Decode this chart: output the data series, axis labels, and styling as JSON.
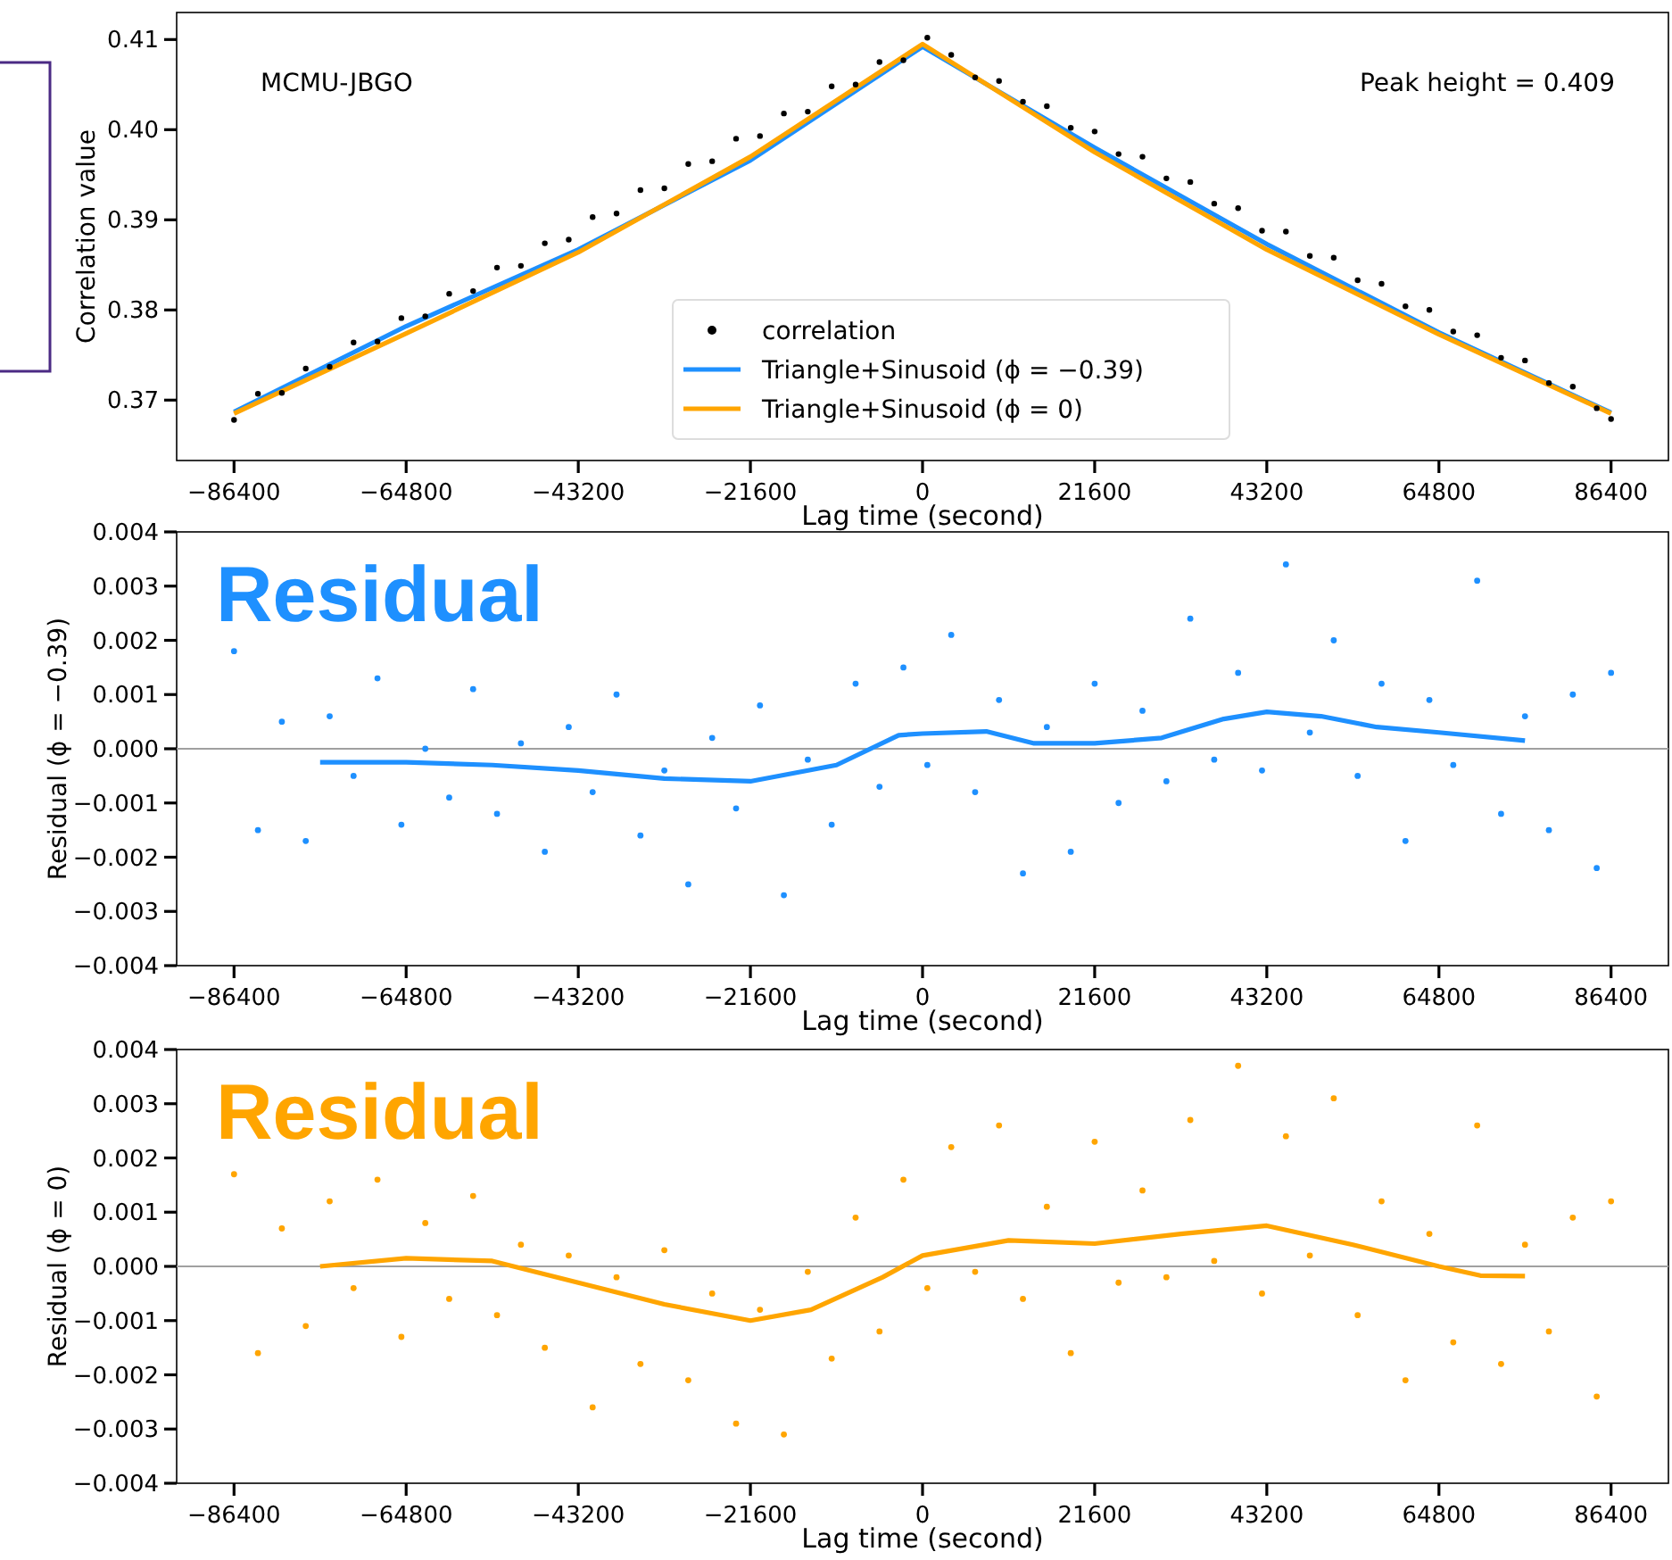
{
  "chart_data": [
    {
      "type": "scatter",
      "annotations": [
        "MCMU-JBGO",
        "Peak height = 0.409"
      ],
      "xlabel": "Lag time (second)",
      "ylabel": "Correlation value",
      "legend": "bottom",
      "xlim": [
        -93600,
        93600
      ],
      "ylim": [
        0.3633,
        0.413
      ],
      "xticks": [
        {
          "value": -86400,
          "label": "−86400"
        },
        {
          "value": -64800,
          "label": "−64800"
        },
        {
          "value": -43200,
          "label": "−43200"
        },
        {
          "value": -21600,
          "label": "−21600"
        },
        0,
        21600,
        43200,
        64800,
        86400
      ],
      "yticks": [
        0.37,
        0.38,
        0.39,
        {
          "value": 0.4,
          "label": "0.40"
        },
        0.41
      ],
      "series": [
        {
          "name": "correlation",
          "type": "scatter",
          "color": "#000000",
          "x": [
            -86400,
            -83400,
            -80400,
            -77400,
            -74400,
            -71400,
            -68400,
            -65400,
            -62400,
            -59400,
            -56400,
            -53400,
            -50400,
            -47400,
            -44400,
            -41400,
            -38400,
            -35400,
            -32400,
            -29400,
            -26400,
            -23400,
            -20400,
            -17400,
            -14400,
            -11400,
            -8400,
            -5400,
            -2400,
            600,
            3600,
            6600,
            9600,
            12600,
            15600,
            18600,
            21600,
            24600,
            27600,
            30600,
            33600,
            36600,
            39600,
            42600,
            45600,
            48600,
            51600,
            54600,
            57600,
            60600,
            63600,
            66600,
            69600,
            72600,
            75600,
            78600,
            81600,
            84600,
            86400
          ],
          "values": [
            0.3678,
            0.3707,
            0.3708,
            0.3735,
            0.3737,
            0.3764,
            0.3765,
            0.3791,
            0.3793,
            0.3818,
            0.3821,
            0.3847,
            0.3849,
            0.3874,
            0.3878,
            0.3903,
            0.3907,
            0.3933,
            0.3935,
            0.3962,
            0.3965,
            0.399,
            0.3993,
            0.4018,
            0.402,
            0.4048,
            0.405,
            0.4075,
            0.4077,
            0.4102,
            0.4083,
            0.4058,
            0.4054,
            0.4031,
            0.4026,
            0.4002,
            0.3998,
            0.3973,
            0.397,
            0.3946,
            0.3942,
            0.3918,
            0.3913,
            0.3888,
            0.3887,
            0.386,
            0.3858,
            0.3833,
            0.3829,
            0.3804,
            0.38,
            0.3776,
            0.3772,
            0.3747,
            0.3744,
            0.3719,
            0.3715,
            0.3691,
            0.3679
          ]
        },
        {
          "name": "Triangle+Sinusoid (ϕ = −0.39)",
          "type": "line",
          "color": "#1e90ff",
          "x": [
            -86400,
            -64800,
            -43200,
            -21600,
            0,
            21600,
            43200,
            64800,
            86400
          ],
          "values": [
            0.3687,
            0.3782,
            0.3867,
            0.3966,
            0.4092,
            0.398,
            0.3873,
            0.3775,
            0.3686
          ]
        },
        {
          "name": "Triangle+Sinusoid (ϕ = 0)",
          "type": "line",
          "color": "#ffa500",
          "x": [
            -86400,
            -64800,
            -43200,
            -21600,
            0,
            21600,
            43200,
            64800,
            86400
          ],
          "values": [
            0.3685,
            0.3774,
            0.3864,
            0.397,
            0.4095,
            0.3975,
            0.3867,
            0.3773,
            0.3685
          ]
        }
      ]
    },
    {
      "type": "scatter",
      "annotations": [
        "Residual"
      ],
      "xlabel": "Lag time (second)",
      "ylabel": "Residual (ϕ = −0.39)",
      "legend": false,
      "xlim": [
        -93600,
        93600
      ],
      "ylim": [
        -0.004,
        0.004
      ],
      "xticks": [
        {
          "value": -86400,
          "label": "−86400"
        },
        {
          "value": -64800,
          "label": "−64800"
        },
        {
          "value": -43200,
          "label": "−43200"
        },
        {
          "value": -21600,
          "label": "−21600"
        },
        0,
        21600,
        43200,
        64800,
        86400
      ],
      "yticks": [
        {
          "value": -0.004,
          "label": "−0.004"
        },
        {
          "value": -0.003,
          "label": "−0.003"
        },
        {
          "value": -0.002,
          "label": "−0.002"
        },
        {
          "value": -0.001,
          "label": "−0.001"
        },
        {
          "value": 0,
          "label": "0.000"
        },
        0.001,
        0.002,
        0.003,
        0.004
      ],
      "ref_lines": [
        {
          "axis": "y",
          "value": 0,
          "color": "#a0a0a0"
        }
      ],
      "series": [
        {
          "type": "scatter",
          "color": "#1e90ff",
          "x": [
            -86400,
            -83400,
            -80400,
            -77400,
            -74400,
            -71400,
            -68400,
            -65400,
            -62400,
            -59400,
            -56400,
            -53400,
            -50400,
            -47400,
            -44400,
            -41400,
            -38400,
            -35400,
            -32400,
            -29400,
            -26400,
            -23400,
            -20400,
            -17400,
            -14400,
            -11400,
            -8400,
            -5400,
            -2400,
            600,
            3600,
            6600,
            9600,
            12600,
            15600,
            18600,
            21600,
            24600,
            27600,
            30600,
            33600,
            36600,
            39600,
            42600,
            45600,
            48600,
            51600,
            54600,
            57600,
            60600,
            63600,
            66600,
            69600,
            72600,
            75600,
            78600,
            81600,
            84600,
            86400
          ],
          "values": [
            0.0018,
            -0.0015,
            0.0005,
            -0.0017,
            0.0006,
            -0.0005,
            0.0013,
            -0.0014,
            0.0,
            -0.0009,
            0.0011,
            -0.0012,
            0.0001,
            -0.0019,
            0.0004,
            -0.0008,
            0.001,
            -0.0016,
            -0.0004,
            -0.0025,
            0.0002,
            -0.0011,
            0.0008,
            -0.0027,
            -0.0002,
            -0.0014,
            0.0012,
            -0.0007,
            0.0015,
            -0.0003,
            0.0021,
            -0.0008,
            0.0009,
            -0.0023,
            0.0004,
            -0.0019,
            0.0012,
            -0.001,
            0.0007,
            -0.0006,
            0.0024,
            -0.0002,
            0.0014,
            -0.0004,
            0.0034,
            0.0003,
            0.002,
            -0.0005,
            0.0012,
            -0.0017,
            0.0009,
            -0.0003,
            0.0031,
            -0.0012,
            0.0006,
            -0.0015,
            0.001,
            -0.0022,
            0.0014
          ]
        },
        {
          "type": "line",
          "color": "#1e90ff",
          "x": [
            -75600,
            -64800,
            -54000,
            -43200,
            -32400,
            -21600,
            -10800,
            -3000,
            0,
            8000,
            14000,
            21600,
            30000,
            37800,
            43200,
            50000,
            57000,
            64800,
            75600
          ],
          "values": [
            -0.00025,
            -0.00025,
            -0.0003,
            -0.0004,
            -0.00055,
            -0.0006,
            -0.0003,
            0.00025,
            0.00028,
            0.00032,
            0.0001,
            0.0001,
            0.0002,
            0.00055,
            0.00068,
            0.0006,
            0.0004,
            0.0003,
            0.00015
          ]
        }
      ]
    },
    {
      "type": "scatter",
      "annotations": [
        "Residual"
      ],
      "xlabel": "Lag time (second)",
      "ylabel": "Residual (ϕ = 0)",
      "legend": false,
      "xlim": [
        -93600,
        93600
      ],
      "ylim": [
        -0.004,
        0.004
      ],
      "xticks": [
        {
          "value": -86400,
          "label": "−86400"
        },
        {
          "value": -64800,
          "label": "−64800"
        },
        {
          "value": -43200,
          "label": "−43200"
        },
        {
          "value": -21600,
          "label": "−21600"
        },
        0,
        21600,
        43200,
        64800,
        86400
      ],
      "yticks": [
        {
          "value": -0.004,
          "label": "−0.004"
        },
        {
          "value": -0.003,
          "label": "−0.003"
        },
        {
          "value": -0.002,
          "label": "−0.002"
        },
        {
          "value": -0.001,
          "label": "−0.001"
        },
        {
          "value": 0,
          "label": "0.000"
        },
        0.001,
        0.002,
        0.003,
        0.004
      ],
      "ref_lines": [
        {
          "axis": "y",
          "value": 0,
          "color": "#a0a0a0"
        }
      ],
      "series": [
        {
          "type": "scatter",
          "color": "#ffa500",
          "x": [
            -86400,
            -83400,
            -80400,
            -77400,
            -74400,
            -71400,
            -68400,
            -65400,
            -62400,
            -59400,
            -56400,
            -53400,
            -50400,
            -47400,
            -44400,
            -41400,
            -38400,
            -35400,
            -32400,
            -29400,
            -26400,
            -23400,
            -20400,
            -17400,
            -14400,
            -11400,
            -8400,
            -5400,
            -2400,
            600,
            3600,
            6600,
            9600,
            12600,
            15600,
            18600,
            21600,
            24600,
            27600,
            30600,
            33600,
            36600,
            39600,
            42600,
            45600,
            48600,
            51600,
            54600,
            57600,
            60600,
            63600,
            66600,
            69600,
            72600,
            75600,
            78600,
            81600,
            84600,
            86400
          ],
          "values": [
            0.0017,
            -0.0016,
            0.0007,
            -0.0011,
            0.0012,
            -0.0004,
            0.0016,
            -0.0013,
            0.0008,
            -0.0006,
            0.0013,
            -0.0009,
            0.0004,
            -0.0015,
            0.0002,
            -0.0026,
            -0.0002,
            -0.0018,
            0.0003,
            -0.0021,
            -0.0005,
            -0.0029,
            -0.0008,
            -0.0031,
            -0.0001,
            -0.0017,
            0.0009,
            -0.0012,
            0.0016,
            -0.0004,
            0.0022,
            -0.0001,
            0.0026,
            -0.0006,
            0.0011,
            -0.0016,
            0.0023,
            -0.0003,
            0.0014,
            -0.0002,
            0.0027,
            0.0001,
            0.0037,
            -0.0005,
            0.0024,
            0.0002,
            0.0031,
            -0.0009,
            0.0012,
            -0.0021,
            0.0006,
            -0.0014,
            0.0026,
            -0.0018,
            0.0004,
            -0.0012,
            0.0009,
            -0.0024,
            0.0012
          ]
        },
        {
          "type": "line",
          "color": "#ffa500",
          "x": [
            -75600,
            -64800,
            -54000,
            -43200,
            -32400,
            -21600,
            -14000,
            -5000,
            0,
            10800,
            21600,
            32400,
            43200,
            54000,
            64800,
            70000,
            75600
          ],
          "values": [
            0,
            0.00015,
            0.0001,
            -0.0003,
            -0.0007,
            -0.001,
            -0.0008,
            -0.0002,
            0.0002,
            0.00048,
            0.00042,
            0.0006,
            0.00075,
            0.0004,
            0,
            -0.00017,
            -0.00018
          ]
        }
      ]
    }
  ]
}
